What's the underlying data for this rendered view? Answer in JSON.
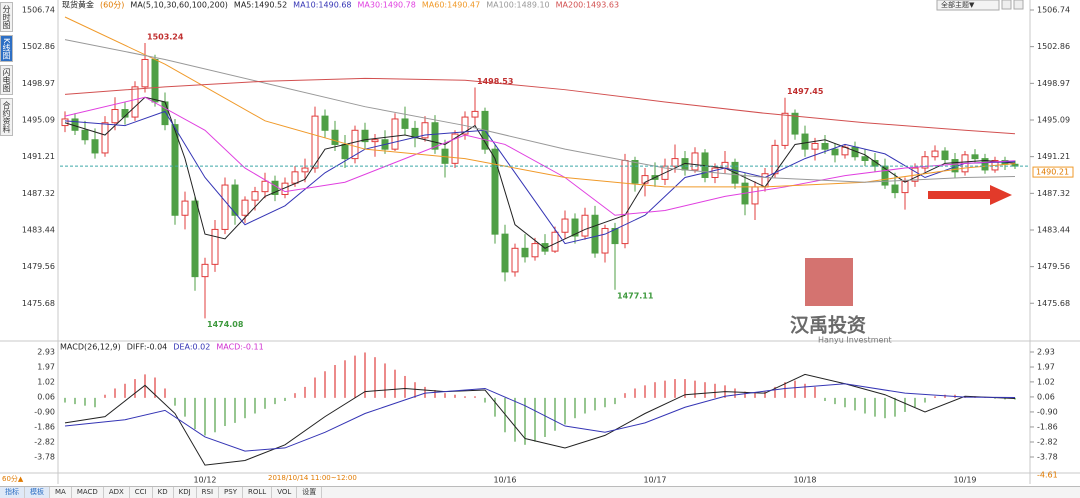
{
  "ui": {
    "tabs": [
      "分时图",
      "K线图",
      "闪电图",
      "合约资料"
    ],
    "theme_button": "全部主题▼",
    "period_button": "60分▲",
    "time_range": "2018/10/14 11:00~12:00",
    "toolbar": [
      "指标",
      "模板",
      "MA",
      "MACD",
      "ADX",
      "CCI",
      "KD",
      "KDJ",
      "RSI",
      "PSY",
      "ROLL",
      "VOL",
      "设置"
    ],
    "watermark": "汉禹投资",
    "watermark_sub": "Hanyu Investment"
  },
  "chart_data": [
    {
      "type": "candlestick",
      "title": "现货黄金",
      "subtitle": "(60分)",
      "indicator": "MA(5,10,30,60,100,200)",
      "categories": [
        null,
        null,
        null,
        null,
        null,
        null,
        null,
        null,
        null,
        null,
        null,
        null,
        null,
        null,
        "10/12",
        null,
        null,
        null,
        null,
        null,
        null,
        null,
        null,
        null,
        null,
        null,
        null,
        null,
        null,
        null,
        null,
        null,
        null,
        null,
        null,
        null,
        null,
        null,
        null,
        null,
        null,
        null,
        null,
        null,
        "10/16",
        null,
        null,
        null,
        null,
        null,
        null,
        null,
        null,
        null,
        null,
        null,
        null,
        null,
        null,
        "10/17",
        null,
        null,
        null,
        null,
        null,
        null,
        null,
        null,
        null,
        null,
        null,
        null,
        null,
        null,
        "10/18",
        null,
        null,
        null,
        null,
        null,
        null,
        null,
        null,
        null,
        null,
        null,
        null,
        null,
        null,
        null,
        "10/19",
        null,
        null,
        null,
        null,
        null
      ],
      "candles": {
        "open": [
          1494.5,
          1495.2,
          1494.0,
          1493.0,
          1491.6,
          1494.8,
          1496.2,
          1495.4,
          1498.6,
          1501.5,
          1497.0,
          1494.6,
          1485.0,
          1486.5,
          1478.5,
          1479.8,
          1483.5,
          1488.2,
          1485.0,
          1486.6,
          1487.5,
          1488.6,
          1487.2,
          1488.4,
          1489.6,
          1490.0,
          1495.5,
          1494.0,
          1492.5,
          1491.0,
          1494.0,
          1492.8,
          1493.0,
          1492.0,
          1495.2,
          1494.2,
          1493.2,
          1494.8,
          1492.0,
          1490.5,
          1493.6,
          1495.4,
          1496.0,
          1492.0,
          1483.0,
          1479.0,
          1481.5,
          1480.6,
          1482.0,
          1481.2,
          1483.2,
          1484.6,
          1482.8,
          1485.0,
          1481.0,
          1483.6,
          1482.0,
          1490.8,
          1488.4,
          1489.2,
          1488.8,
          1490.2,
          1491.0,
          1489.8,
          1491.6,
          1489.0,
          1490.0,
          1490.6,
          1488.4,
          1486.2,
          1488.0,
          1489.4,
          1492.4,
          1495.8,
          1493.6,
          1492.0,
          1492.6,
          1492.0,
          1491.4,
          1492.2,
          1491.2,
          1490.8,
          1490.2,
          1488.2,
          1487.4,
          1488.6,
          1490.0,
          1491.2,
          1491.8,
          1490.9,
          1489.6,
          1491.4,
          1491.0,
          1489.8,
          1490.8,
          1490.4
        ],
        "high": [
          1496.0,
          1495.8,
          1495.0,
          1494.2,
          1495.5,
          1497.5,
          1497.0,
          1499.2,
          1503.24,
          1502.0,
          1498.0,
          1495.2,
          1487.5,
          1487.0,
          1480.5,
          1484.5,
          1489.0,
          1488.8,
          1487.0,
          1488.0,
          1489.5,
          1489.2,
          1489.0,
          1490.2,
          1491.0,
          1496.5,
          1496.2,
          1495.0,
          1493.5,
          1494.5,
          1494.8,
          1493.6,
          1494.0,
          1495.8,
          1496.5,
          1495.0,
          1495.5,
          1495.6,
          1493.0,
          1494.0,
          1496.0,
          1498.53,
          1496.4,
          1492.5,
          1484.0,
          1482.0,
          1483.0,
          1482.6,
          1483.0,
          1483.8,
          1485.5,
          1485.2,
          1485.8,
          1486.0,
          1484.0,
          1484.2,
          1491.5,
          1491.2,
          1490.0,
          1490.6,
          1491.0,
          1492.5,
          1491.8,
          1492.2,
          1492.0,
          1490.5,
          1491.8,
          1491.0,
          1489.5,
          1488.6,
          1490.0,
          1493.0,
          1497.45,
          1496.2,
          1494.5,
          1493.2,
          1493.5,
          1492.6,
          1492.5,
          1492.8,
          1492.0,
          1491.6,
          1491.0,
          1489.5,
          1489.0,
          1490.5,
          1491.8,
          1492.4,
          1492.2,
          1491.6,
          1491.8,
          1492.0,
          1491.5,
          1491.2,
          1491.2,
          1490.8
        ],
        "low": [
          1493.8,
          1493.5,
          1492.5,
          1491.0,
          1491.2,
          1494.0,
          1494.6,
          1495.0,
          1498.0,
          1496.5,
          1494.0,
          1484.0,
          1483.5,
          1477.0,
          1474.08,
          1479.0,
          1483.0,
          1484.0,
          1484.2,
          1485.5,
          1486.8,
          1486.5,
          1486.8,
          1488.0,
          1488.5,
          1489.5,
          1493.2,
          1491.8,
          1490.0,
          1490.5,
          1492.0,
          1491.2,
          1491.5,
          1491.8,
          1493.5,
          1492.2,
          1492.8,
          1491.5,
          1489.0,
          1490.0,
          1493.0,
          1494.5,
          1491.5,
          1482.0,
          1478.0,
          1478.5,
          1480.0,
          1480.2,
          1480.8,
          1481.0,
          1482.5,
          1482.0,
          1482.4,
          1480.5,
          1480.0,
          1477.11,
          1481.5,
          1487.5,
          1487.0,
          1488.0,
          1488.2,
          1489.5,
          1489.2,
          1489.5,
          1488.5,
          1488.4,
          1489.4,
          1487.8,
          1485.0,
          1484.5,
          1487.5,
          1489.0,
          1492.0,
          1493.0,
          1491.2,
          1490.8,
          1491.5,
          1490.6,
          1491.0,
          1490.8,
          1490.2,
          1489.6,
          1487.8,
          1486.8,
          1485.6,
          1488.0,
          1489.6,
          1490.8,
          1490.5,
          1489.0,
          1489.2,
          1490.6,
          1489.4,
          1489.5,
          1489.8,
          1489.9
        ],
        "close": [
          1495.2,
          1494.0,
          1493.0,
          1491.6,
          1494.8,
          1496.2,
          1495.4,
          1498.6,
          1501.5,
          1497.0,
          1494.6,
          1485.0,
          1486.5,
          1478.5,
          1479.8,
          1483.5,
          1488.2,
          1485.0,
          1486.6,
          1487.5,
          1488.6,
          1487.2,
          1488.4,
          1489.6,
          1490.0,
          1495.5,
          1494.0,
          1492.5,
          1491.0,
          1494.0,
          1492.8,
          1493.0,
          1492.0,
          1495.2,
          1494.2,
          1493.2,
          1494.8,
          1492.0,
          1490.5,
          1493.6,
          1495.4,
          1496.0,
          1492.0,
          1483.0,
          1479.0,
          1481.5,
          1480.6,
          1482.0,
          1481.2,
          1483.2,
          1484.6,
          1482.8,
          1485.0,
          1481.0,
          1483.6,
          1482.0,
          1490.8,
          1488.4,
          1489.2,
          1488.8,
          1490.2,
          1491.0,
          1489.8,
          1491.6,
          1489.0,
          1490.0,
          1490.6,
          1488.4,
          1486.2,
          1488.0,
          1489.4,
          1492.4,
          1495.8,
          1493.6,
          1492.0,
          1492.6,
          1492.0,
          1491.4,
          1492.2,
          1491.2,
          1490.8,
          1490.2,
          1488.2,
          1487.4,
          1488.6,
          1490.0,
          1491.2,
          1491.8,
          1490.9,
          1489.6,
          1491.4,
          1491.0,
          1489.8,
          1490.8,
          1490.4,
          1490.21
        ]
      },
      "up_color": "#e03c3c",
      "down_color": "#4f9f45",
      "series": [
        {
          "name": "MA5:1490.52",
          "color": "#222222",
          "x": [
            0,
            4,
            8,
            10,
            12,
            14,
            16,
            20,
            24,
            26,
            30,
            34,
            38,
            41,
            43,
            45,
            48,
            52,
            56,
            58,
            62,
            66,
            70,
            73,
            76,
            80,
            84,
            88,
            92,
            95
          ],
          "values": [
            1494.8,
            1493.5,
            1497.5,
            1497,
            1491,
            1483,
            1482.5,
            1487,
            1488.8,
            1492,
            1493,
            1493.5,
            1492.5,
            1494.5,
            1491,
            1484,
            1481.5,
            1483.5,
            1485,
            1488.5,
            1490.5,
            1490,
            1488,
            1492.5,
            1493,
            1491.4,
            1488.5,
            1490.5,
            1490.8,
            1490.52
          ]
        },
        {
          "name": "MA10:1490.68",
          "color": "#3535b5",
          "x": [
            0,
            6,
            10,
            14,
            18,
            22,
            26,
            30,
            36,
            42,
            46,
            50,
            54,
            58,
            62,
            66,
            70,
            74,
            78,
            82,
            86,
            90,
            95
          ],
          "values": [
            1495,
            1494.5,
            1496,
            1489,
            1484,
            1486,
            1489.5,
            1492,
            1493.5,
            1494,
            1488,
            1482,
            1483,
            1485,
            1489,
            1490,
            1489,
            1491,
            1492.5,
            1491.5,
            1489,
            1490.5,
            1490.68
          ]
        },
        {
          "name": "MA30:1490.78",
          "color": "#e040e0",
          "x": [
            0,
            8,
            14,
            18,
            22,
            28,
            34,
            40,
            44,
            50,
            55,
            60,
            66,
            72,
            78,
            84,
            90,
            95
          ],
          "values": [
            1495.5,
            1497.5,
            1494,
            1490,
            1487.5,
            1488.5,
            1491,
            1493.5,
            1492.5,
            1489,
            1485,
            1485.5,
            1487,
            1488,
            1489.2,
            1490,
            1490.5,
            1490.78
          ]
        },
        {
          "name": "MA60:1490.47",
          "color": "#f09a2a",
          "x": [
            0,
            10,
            20,
            30,
            40,
            50,
            60,
            70,
            80,
            90,
            95
          ],
          "values": [
            1506,
            1501,
            1495,
            1492,
            1491,
            1489,
            1488,
            1488,
            1488.5,
            1490,
            1490.47
          ]
        },
        {
          "name": "MA100:1489.10",
          "color": "#999999",
          "x": [
            0,
            10,
            20,
            30,
            40,
            50,
            60,
            70,
            80,
            90,
            95
          ],
          "values": [
            1503.6,
            1501.5,
            1499,
            1496.5,
            1494.5,
            1492,
            1490,
            1489,
            1488.5,
            1489,
            1489.1
          ]
        },
        {
          "name": "MA200:1493.63",
          "color": "#d25050",
          "x": [
            0,
            10,
            20,
            30,
            40,
            50,
            60,
            70,
            80,
            90,
            95
          ],
          "values": [
            1497.8,
            1498.6,
            1499.2,
            1499.5,
            1499.3,
            1498.3,
            1497,
            1495.8,
            1494.8,
            1494,
            1493.63
          ]
        }
      ],
      "annotations": [
        {
          "index": 8,
          "value": 1503.24
        },
        {
          "index": 14,
          "value": 1474.08
        },
        {
          "index": 41,
          "value": 1498.53
        },
        {
          "index": 55,
          "value": 1477.11
        },
        {
          "index": 72,
          "value": 1497.45
        }
      ],
      "last_price": 1490.21,
      "ylim": [
        1472.0,
        1506.74
      ],
      "yticks": [
        1506.74,
        1502.86,
        1498.97,
        1495.09,
        1491.21,
        1487.32,
        1483.44,
        1479.56,
        1475.68
      ]
    },
    {
      "type": "macd",
      "title": "MACD(26,12,9)",
      "value_name": "MACD:-0.11",
      "value_name_color": "#d030d0",
      "up_color": "#e03c3c",
      "down_color": "#4f9f45",
      "values": [
        -0.3,
        -0.4,
        -0.5,
        -0.6,
        0.2,
        0.6,
        0.9,
        1.2,
        1.5,
        1.3,
        0.6,
        -0.5,
        -1.2,
        -2.0,
        -2.4,
        -2.2,
        -1.8,
        -1.6,
        -1.3,
        -1.0,
        -0.7,
        -0.4,
        -0.2,
        0.3,
        0.7,
        1.3,
        1.7,
        2.1,
        2.4,
        2.7,
        2.9,
        2.6,
        2.2,
        1.8,
        1.4,
        1.0,
        0.7,
        0.5,
        0.3,
        0.2,
        0.1,
        0.1,
        -0.3,
        -1.2,
        -2.2,
        -2.8,
        -3.0,
        -2.8,
        -2.5,
        -2.1,
        -1.7,
        -1.3,
        -1.0,
        -0.8,
        -0.6,
        -0.4,
        0.3,
        0.6,
        0.8,
        1.0,
        1.1,
        1.2,
        1.2,
        1.1,
        1.0,
        0.9,
        0.8,
        0.6,
        0.4,
        0.3,
        0.4,
        0.7,
        1.0,
        1.1,
        0.9,
        0.7,
        -0.2,
        -0.4,
        -0.6,
        -0.8,
        -1.0,
        -1.2,
        -1.3,
        -1.2,
        -0.9,
        -0.6,
        -0.3,
        0.1,
        0.2,
        0.2,
        0.1,
        0.1,
        0.05,
        -0.05,
        -0.1,
        -0.11
      ],
      "series": [
        {
          "name": "DIFF:-0.04",
          "color": "#222222",
          "x": [
            0,
            4,
            8,
            11,
            14,
            18,
            22,
            26,
            30,
            34,
            38,
            42,
            46,
            50,
            54,
            58,
            62,
            66,
            70,
            74,
            78,
            82,
            86,
            90,
            95
          ],
          "values": [
            -1.6,
            -1.2,
            0.8,
            -1.0,
            -4.3,
            -4.0,
            -3.0,
            -1.2,
            0.4,
            0.6,
            0.4,
            0.5,
            -2.6,
            -3.2,
            -2.4,
            -1.0,
            0.2,
            0.4,
            0.3,
            1.5,
            0.9,
            0.2,
            -0.9,
            0.1,
            -0.04
          ]
        },
        {
          "name": "DEA:0.02",
          "color": "#3535b5",
          "x": [
            0,
            6,
            10,
            14,
            18,
            22,
            26,
            30,
            36,
            42,
            46,
            50,
            54,
            58,
            62,
            66,
            72,
            78,
            84,
            90,
            95
          ],
          "values": [
            -1.8,
            -1.4,
            -0.8,
            -2.5,
            -3.4,
            -3.2,
            -2.2,
            -1.0,
            0.3,
            0.6,
            -0.5,
            -1.8,
            -2.2,
            -1.6,
            -0.6,
            0.1,
            0.6,
            0.9,
            0.3,
            0.05,
            0.02
          ]
        }
      ],
      "ylim": [
        -4.61,
        2.93
      ],
      "yticks": [
        2.93,
        1.97,
        1.02,
        0.06,
        {
          "value": -0.9,
          "label": "-0.90"
        },
        -1.86,
        -2.82,
        -3.78
      ]
    }
  ]
}
